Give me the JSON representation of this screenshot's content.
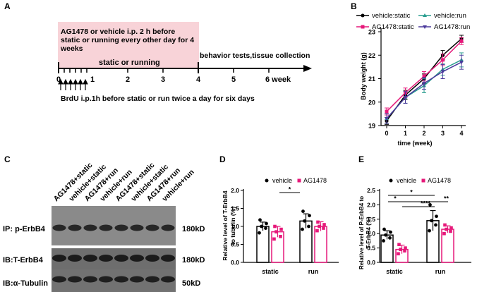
{
  "panel_labels": {
    "a": "A",
    "b": "B",
    "c": "C",
    "d": "D",
    "e": "E"
  },
  "panel_a": {
    "pink_box_text": [
      "AG1478 or vehicle i.p. 2 h before",
      "static or running every other day for 4",
      "weeks"
    ],
    "behavior_text": "behavior tests,tissue collection",
    "phase_text": "static or running",
    "ticks": [
      "0",
      "1",
      "2",
      "3",
      "4",
      "5",
      "6 week"
    ],
    "brdu_text": "BrdU i.p.1h before static or run twice a day for six days",
    "colors": {
      "pink_box": "#f8d3d8",
      "line": "#000000"
    }
  },
  "panel_b": {
    "legend": [
      "vehicle:static",
      "vehicle:run",
      "AG1478:static",
      "AG1478:run"
    ],
    "colors": {
      "vehicle:static": "#000000",
      "vehicle:run": "#2a9d8f",
      "AG1478:static": "#e6197a",
      "AG1478:run": "#4b3a9c"
    },
    "ylabel": "Body weight (g)",
    "xlabel": "time  (week)",
    "yticks": [
      "19",
      "20",
      "21",
      "22",
      "23"
    ],
    "xticks": [
      "0",
      "1",
      "2",
      "3",
      "4"
    ]
  },
  "panel_c": {
    "lane_labels": [
      "AG1478+static",
      "vehicle+static",
      "AG1478+run",
      "vehicle+run",
      "AG1478+static",
      "vehicle+static",
      "AG1478+run",
      "vehicle+run"
    ],
    "rows": [
      {
        "left": "IP: p-ErbB4",
        "right": "180kD"
      },
      {
        "left": "IB:T-ErbB4",
        "right": "180kD"
      },
      {
        "left": "IB:α-Tubulin",
        "right": "50kD"
      }
    ]
  },
  "panel_d": {
    "ylabel_lines": [
      "Relative level of T-ErbB4",
      "to tubulin (%)"
    ],
    "yticks": [
      "0.0",
      "0.5",
      "1.0",
      "1.5",
      "2.0"
    ],
    "xticks": [
      "static",
      "run"
    ],
    "legend": [
      "vehicle",
      "AG1478"
    ],
    "sig": [
      "*"
    ]
  },
  "panel_e": {
    "ylabel_lines": [
      "Relative level of P-ErbB4 to",
      "T-ErbB4 (%)"
    ],
    "yticks": [
      "0.0",
      "0.5",
      "1.0",
      "1.5",
      "2.0",
      "2.5"
    ],
    "xticks": [
      "static",
      "run"
    ],
    "legend": [
      "vehicle",
      "AG1478"
    ],
    "sig": [
      "*",
      "*",
      "**",
      "****"
    ]
  },
  "chart_data": [
    {
      "type": "line",
      "xlabel": "time  (week)",
      "ylabel": "Body weight (g)",
      "x": [
        0,
        1,
        2,
        3,
        4
      ],
      "ylim": [
        19,
        23
      ],
      "series": [
        {
          "name": "vehicle:static",
          "values": [
            19.2,
            20.3,
            21.0,
            22.0,
            22.7
          ],
          "err": [
            0.15,
            0.2,
            0.2,
            0.2,
            0.15
          ]
        },
        {
          "name": "vehicle:run",
          "values": [
            19.3,
            20.2,
            20.7,
            21.4,
            21.8
          ],
          "err": [
            0.2,
            0.25,
            0.3,
            0.25,
            0.3
          ]
        },
        {
          "name": "AG1478:static",
          "values": [
            19.6,
            20.4,
            21.1,
            21.8,
            22.6
          ],
          "err": [
            0.15,
            0.2,
            0.2,
            0.25,
            0.15
          ]
        },
        {
          "name": "AG1478:run",
          "values": [
            19.3,
            20.2,
            20.8,
            21.3,
            21.7
          ],
          "err": [
            0.2,
            0.25,
            0.25,
            0.3,
            0.3
          ]
        }
      ]
    },
    {
      "type": "bar",
      "ylabel": "Relative level of T-ErbB4 to tubulin (%)",
      "categories": [
        "static",
        "run"
      ],
      "ylim": [
        0,
        2.0
      ],
      "series": [
        {
          "name": "vehicle",
          "values": [
            1.0,
            1.15
          ],
          "err": [
            0.12,
            0.2
          ],
          "points": [
            [
              0.82,
              0.95,
              1.0,
              1.08,
              1.18
            ],
            [
              0.92,
              1.0,
              1.15,
              1.3,
              1.42
            ]
          ]
        },
        {
          "name": "AG1478",
          "values": [
            0.85,
            1.0
          ],
          "err": [
            0.15,
            0.13
          ],
          "points": [
            [
              0.65,
              0.72,
              0.85,
              0.92,
              1.0
            ],
            [
              0.88,
              0.95,
              1.0,
              1.05,
              1.12
            ]
          ]
        }
      ]
    },
    {
      "type": "bar",
      "ylabel": "Relative level of P-ErbB4 to T-ErbB4 (%)",
      "categories": [
        "static",
        "run"
      ],
      "ylim": [
        0,
        2.5
      ],
      "series": [
        {
          "name": "vehicle",
          "values": [
            0.95,
            1.45
          ],
          "err": [
            0.15,
            0.35
          ],
          "points": [
            [
              0.75,
              0.85,
              0.95,
              1.05,
              1.15
            ],
            [
              1.1,
              1.3,
              1.45,
              1.6,
              2.0
            ]
          ]
        },
        {
          "name": "AG1478",
          "values": [
            0.45,
            1.15
          ],
          "err": [
            0.15,
            0.12
          ],
          "points": [
            [
              0.3,
              0.4,
              0.45,
              0.5,
              0.62
            ],
            [
              1.0,
              1.08,
              1.15,
              1.2,
              1.3
            ]
          ]
        }
      ]
    }
  ]
}
